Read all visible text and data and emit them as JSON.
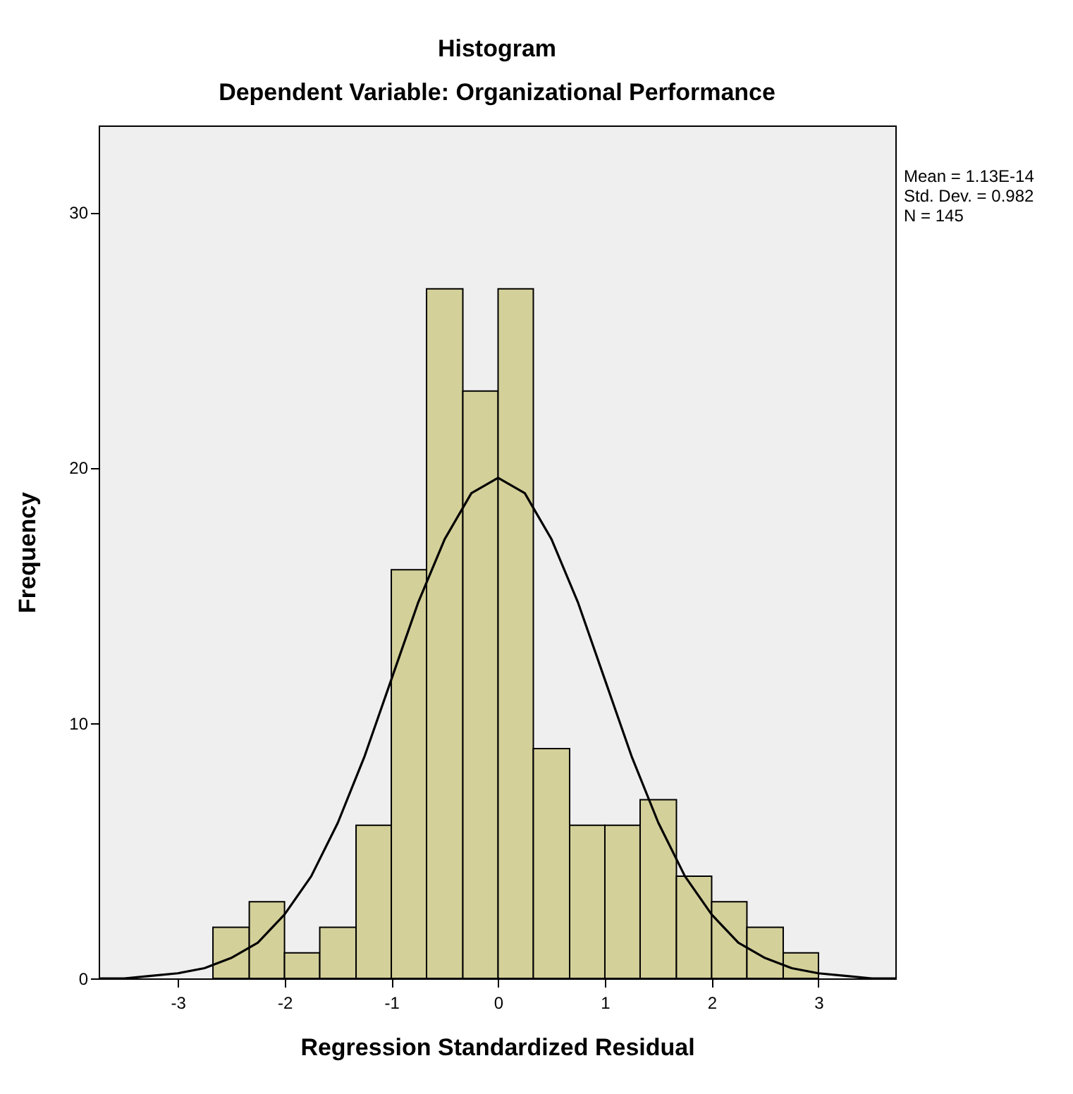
{
  "chart_data": {
    "type": "histogram",
    "title": "Histogram",
    "subtitle": "Dependent Variable: Organizational Performance",
    "xlabel": "Regression Standardized Residual",
    "ylabel": "Frequency",
    "annotations": [
      "Mean = 1.13E-14",
      "Std. Dev. = 0.982",
      "N = 145"
    ],
    "color": "#d4d09a",
    "bins": [
      -2.67,
      -2.33,
      -2,
      -1.67,
      -1.33,
      -1,
      -0.67,
      -0.33,
      0,
      0.33,
      0.67,
      1,
      1.33,
      1.67,
      2,
      2.33,
      2.67,
      3
    ],
    "values": [
      2,
      3,
      1,
      2,
      6,
      16,
      27,
      23,
      27,
      9,
      6,
      6,
      7,
      4,
      3,
      2,
      1
    ],
    "series": [
      {
        "type": "line",
        "color": "#000000",
        "x": [
          -3.74,
          -3.5,
          -3.25,
          -3,
          -2.75,
          -2.5,
          -2.25,
          -2,
          -1.75,
          -1.5,
          -1.25,
          -1,
          -0.75,
          -0.5,
          -0.25,
          0,
          0.25,
          0.5,
          0.75,
          1,
          1.25,
          1.5,
          1.75,
          2,
          2.25,
          2.5,
          2.75,
          3,
          3.25,
          3.5,
          3.72
        ],
        "values": [
          0,
          0,
          0.1,
          0.2,
          0.4,
          0.8,
          1.4,
          2.5,
          4,
          6.1,
          8.7,
          11.7,
          14.7,
          17.2,
          19,
          19.6,
          19,
          17.2,
          14.7,
          11.7,
          8.7,
          6.1,
          4,
          2.5,
          1.4,
          0.8,
          0.4,
          0.2,
          0.1,
          0,
          0
        ]
      }
    ],
    "xlim": [
      -3.74,
      3.72
    ],
    "xticks": [
      -3,
      -2,
      -1,
      0,
      1,
      2,
      3
    ],
    "ylim": [
      0,
      33.4
    ],
    "yticks": [
      0,
      10,
      20,
      30
    ],
    "grid": false,
    "marker": "none",
    "line_style": "solid"
  }
}
